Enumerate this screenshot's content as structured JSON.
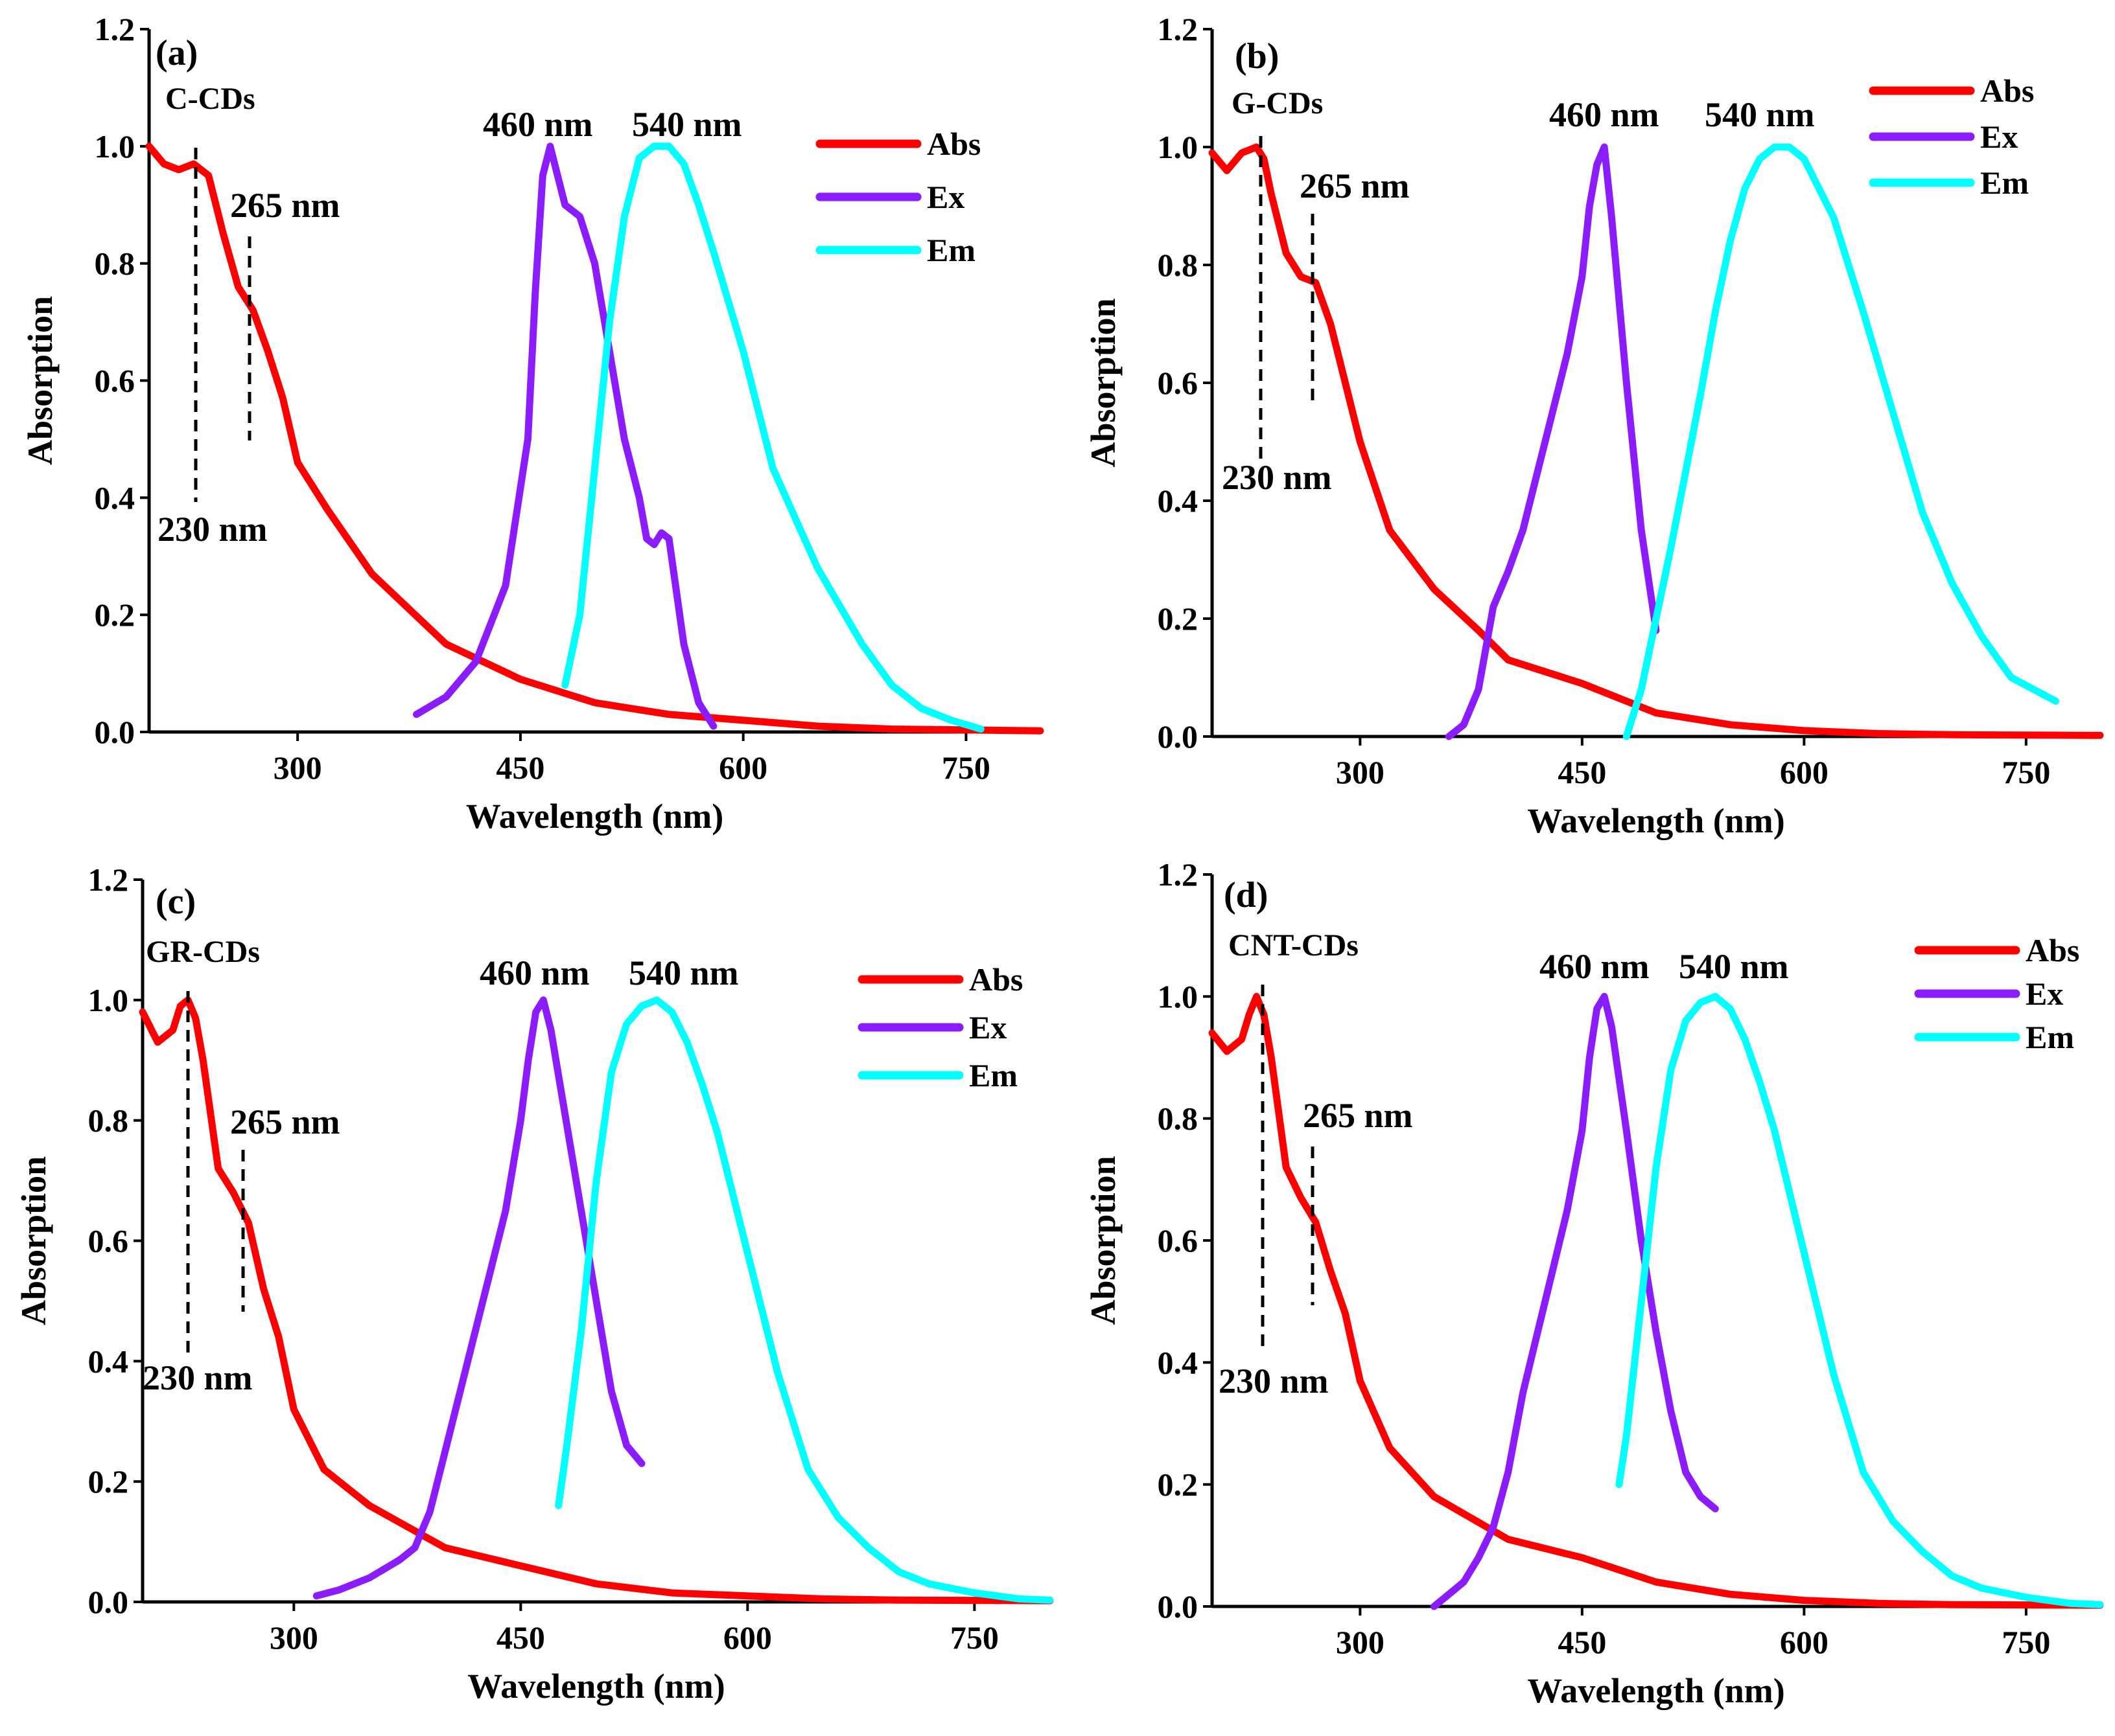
{
  "colors": {
    "Abs": "#ff0000",
    "Ex": "#8b1cff",
    "Em": "#00ffff",
    "axis": "#000000"
  },
  "chart_data": [
    {
      "type": "line",
      "panel_label": "(a)",
      "sample": "C-CDs",
      "xlabel": "Wavelength (nm)",
      "ylabel": "Absorption",
      "xlim": [
        200,
        800
      ],
      "ylim": [
        0,
        1.2
      ],
      "xticks": [
        300,
        450,
        600,
        750
      ],
      "yticks": [
        "0.0",
        "0.2",
        "0.4",
        "0.6",
        "0.8",
        "1.0",
        "1.2"
      ],
      "legend_position": "top-right",
      "legend": [
        "Abs",
        "Ex",
        "Em"
      ],
      "annotations": [
        "230 nm",
        "265 nm",
        "460 nm",
        "540 nm"
      ],
      "series": [
        {
          "name": "Abs",
          "x": [
            200,
            210,
            220,
            230,
            240,
            250,
            260,
            270,
            280,
            290,
            300,
            320,
            350,
            400,
            450,
            500,
            550,
            600,
            650,
            700,
            800
          ],
          "y": [
            1.0,
            0.97,
            0.96,
            0.97,
            0.95,
            0.85,
            0.76,
            0.72,
            0.65,
            0.57,
            0.46,
            0.38,
            0.27,
            0.15,
            0.09,
            0.05,
            0.03,
            0.02,
            0.01,
            0.005,
            0.002
          ]
        },
        {
          "name": "Ex",
          "x": [
            380,
            400,
            420,
            440,
            455,
            460,
            465,
            470,
            480,
            490,
            500,
            510,
            520,
            530,
            535,
            540,
            545,
            550,
            560,
            570,
            580
          ],
          "y": [
            0.03,
            0.06,
            0.12,
            0.25,
            0.5,
            0.75,
            0.95,
            1.0,
            0.9,
            0.88,
            0.8,
            0.65,
            0.5,
            0.4,
            0.33,
            0.32,
            0.34,
            0.33,
            0.15,
            0.05,
            0.01
          ]
        },
        {
          "name": "Em",
          "x": [
            480,
            490,
            500,
            510,
            520,
            530,
            540,
            550,
            560,
            570,
            580,
            600,
            620,
            650,
            680,
            700,
            720,
            740,
            760
          ],
          "y": [
            0.08,
            0.2,
            0.45,
            0.7,
            0.88,
            0.98,
            1.0,
            1.0,
            0.97,
            0.9,
            0.82,
            0.65,
            0.45,
            0.28,
            0.15,
            0.08,
            0.04,
            0.02,
            0.005
          ]
        }
      ]
    },
    {
      "type": "line",
      "panel_label": "(b)",
      "sample": "G-CDs",
      "xlabel": "Wavelength (nm)",
      "ylabel": "Absorption",
      "xlim": [
        200,
        800
      ],
      "ylim": [
        0,
        1.2
      ],
      "xticks": [
        300,
        450,
        600,
        750
      ],
      "yticks": [
        "0.0",
        "0.2",
        "0.4",
        "0.6",
        "0.8",
        "1.0",
        "1.2"
      ],
      "legend_position": "top-right",
      "legend": [
        "Abs",
        "Ex",
        "Em"
      ],
      "annotations": [
        "230 nm",
        "265 nm",
        "460 nm",
        "540 nm"
      ],
      "series": [
        {
          "name": "Abs",
          "x": [
            200,
            210,
            220,
            230,
            235,
            240,
            250,
            260,
            270,
            280,
            290,
            300,
            320,
            350,
            380,
            400,
            450,
            500,
            550,
            600,
            650,
            700,
            800
          ],
          "y": [
            0.99,
            0.96,
            0.99,
            1.0,
            0.98,
            0.92,
            0.82,
            0.78,
            0.77,
            0.7,
            0.6,
            0.5,
            0.35,
            0.25,
            0.18,
            0.13,
            0.09,
            0.04,
            0.02,
            0.01,
            0.005,
            0.003,
            0.002
          ]
        },
        {
          "name": "Ex",
          "x": [
            360,
            370,
            380,
            390,
            400,
            410,
            420,
            430,
            440,
            450,
            455,
            460,
            465,
            470,
            480,
            490,
            500
          ],
          "y": [
            0.0,
            0.02,
            0.08,
            0.22,
            0.28,
            0.35,
            0.45,
            0.55,
            0.65,
            0.78,
            0.9,
            0.97,
            1.0,
            0.88,
            0.6,
            0.35,
            0.18
          ]
        },
        {
          "name": "Em",
          "x": [
            480,
            490,
            500,
            510,
            520,
            530,
            540,
            550,
            560,
            570,
            580,
            590,
            600,
            620,
            640,
            660,
            680,
            700,
            720,
            740,
            770
          ],
          "y": [
            0.0,
            0.08,
            0.2,
            0.32,
            0.45,
            0.58,
            0.72,
            0.84,
            0.93,
            0.98,
            1.0,
            1.0,
            0.98,
            0.88,
            0.72,
            0.55,
            0.38,
            0.26,
            0.17,
            0.1,
            0.06
          ]
        }
      ]
    },
    {
      "type": "line",
      "panel_label": "(c)",
      "sample": "GR-CDs",
      "xlabel": "Wavelength (nm)",
      "ylabel": "Absorption",
      "xlim": [
        200,
        800
      ],
      "ylim": [
        0,
        1.2
      ],
      "xticks": [
        300,
        450,
        600,
        750
      ],
      "yticks": [
        "0.0",
        "0.2",
        "0.4",
        "0.6",
        "0.8",
        "1.0",
        "1.2"
      ],
      "legend_position": "top-right",
      "legend": [
        "Abs",
        "Ex",
        "Em"
      ],
      "annotations": [
        "230 nm",
        "265 nm",
        "460 nm",
        "540 nm"
      ],
      "series": [
        {
          "name": "Abs",
          "x": [
            200,
            210,
            220,
            225,
            230,
            235,
            240,
            250,
            260,
            270,
            280,
            290,
            300,
            320,
            350,
            400,
            450,
            500,
            550,
            600,
            650,
            700,
            800
          ],
          "y": [
            0.98,
            0.93,
            0.95,
            0.99,
            1.0,
            0.97,
            0.9,
            0.72,
            0.68,
            0.63,
            0.52,
            0.44,
            0.32,
            0.22,
            0.16,
            0.09,
            0.06,
            0.03,
            0.015,
            0.01,
            0.005,
            0.003,
            0.002
          ]
        },
        {
          "name": "Ex",
          "x": [
            315,
            330,
            350,
            370,
            380,
            390,
            400,
            410,
            420,
            430,
            440,
            450,
            455,
            460,
            465,
            470,
            480,
            490,
            500,
            510,
            520,
            530
          ],
          "y": [
            0.01,
            0.02,
            0.04,
            0.07,
            0.09,
            0.15,
            0.25,
            0.35,
            0.45,
            0.55,
            0.65,
            0.8,
            0.9,
            0.98,
            1.0,
            0.95,
            0.8,
            0.65,
            0.5,
            0.35,
            0.26,
            0.23
          ]
        },
        {
          "name": "Em",
          "x": [
            475,
            480,
            490,
            500,
            510,
            520,
            530,
            540,
            550,
            560,
            570,
            580,
            600,
            620,
            640,
            660,
            680,
            700,
            720,
            750,
            780,
            800
          ],
          "y": [
            0.16,
            0.25,
            0.45,
            0.7,
            0.88,
            0.96,
            0.99,
            1.0,
            0.98,
            0.93,
            0.86,
            0.78,
            0.58,
            0.38,
            0.22,
            0.14,
            0.09,
            0.05,
            0.03,
            0.015,
            0.005,
            0.003
          ]
        }
      ]
    },
    {
      "type": "line",
      "panel_label": "(d)",
      "sample": "CNT-CDs",
      "xlabel": "Wavelength (nm)",
      "ylabel": "Absorption",
      "xlim": [
        200,
        800
      ],
      "ylim": [
        0,
        1.2
      ],
      "xticks": [
        300,
        450,
        600,
        750
      ],
      "yticks": [
        "0.0",
        "0.2",
        "0.4",
        "0.6",
        "0.8",
        "1.0",
        "1.2"
      ],
      "legend_position": "top-right",
      "legend": [
        "Abs",
        "Ex",
        "Em"
      ],
      "annotations": [
        "230 nm",
        "265 nm",
        "460 nm",
        "540 nm"
      ],
      "series": [
        {
          "name": "Abs",
          "x": [
            200,
            210,
            220,
            225,
            230,
            235,
            240,
            250,
            260,
            270,
            280,
            290,
            300,
            320,
            350,
            400,
            450,
            500,
            550,
            600,
            650,
            700,
            800
          ],
          "y": [
            0.94,
            0.91,
            0.93,
            0.97,
            1.0,
            0.97,
            0.9,
            0.72,
            0.67,
            0.63,
            0.55,
            0.48,
            0.37,
            0.26,
            0.18,
            0.11,
            0.08,
            0.04,
            0.02,
            0.01,
            0.005,
            0.003,
            0.002
          ]
        },
        {
          "name": "Ex",
          "x": [
            350,
            360,
            370,
            380,
            390,
            400,
            410,
            420,
            430,
            440,
            450,
            455,
            460,
            465,
            470,
            480,
            490,
            500,
            510,
            520,
            530,
            540
          ],
          "y": [
            0.0,
            0.02,
            0.04,
            0.08,
            0.13,
            0.22,
            0.35,
            0.45,
            0.55,
            0.65,
            0.78,
            0.9,
            0.98,
            1.0,
            0.95,
            0.78,
            0.6,
            0.45,
            0.32,
            0.22,
            0.18,
            0.16
          ]
        },
        {
          "name": "Em",
          "x": [
            475,
            480,
            490,
            500,
            510,
            520,
            530,
            540,
            550,
            560,
            570,
            580,
            600,
            620,
            640,
            660,
            680,
            700,
            720,
            750,
            780,
            800
          ],
          "y": [
            0.2,
            0.28,
            0.5,
            0.72,
            0.88,
            0.96,
            0.99,
            1.0,
            0.98,
            0.93,
            0.86,
            0.78,
            0.58,
            0.38,
            0.22,
            0.14,
            0.09,
            0.05,
            0.03,
            0.015,
            0.005,
            0.003
          ]
        }
      ]
    }
  ]
}
